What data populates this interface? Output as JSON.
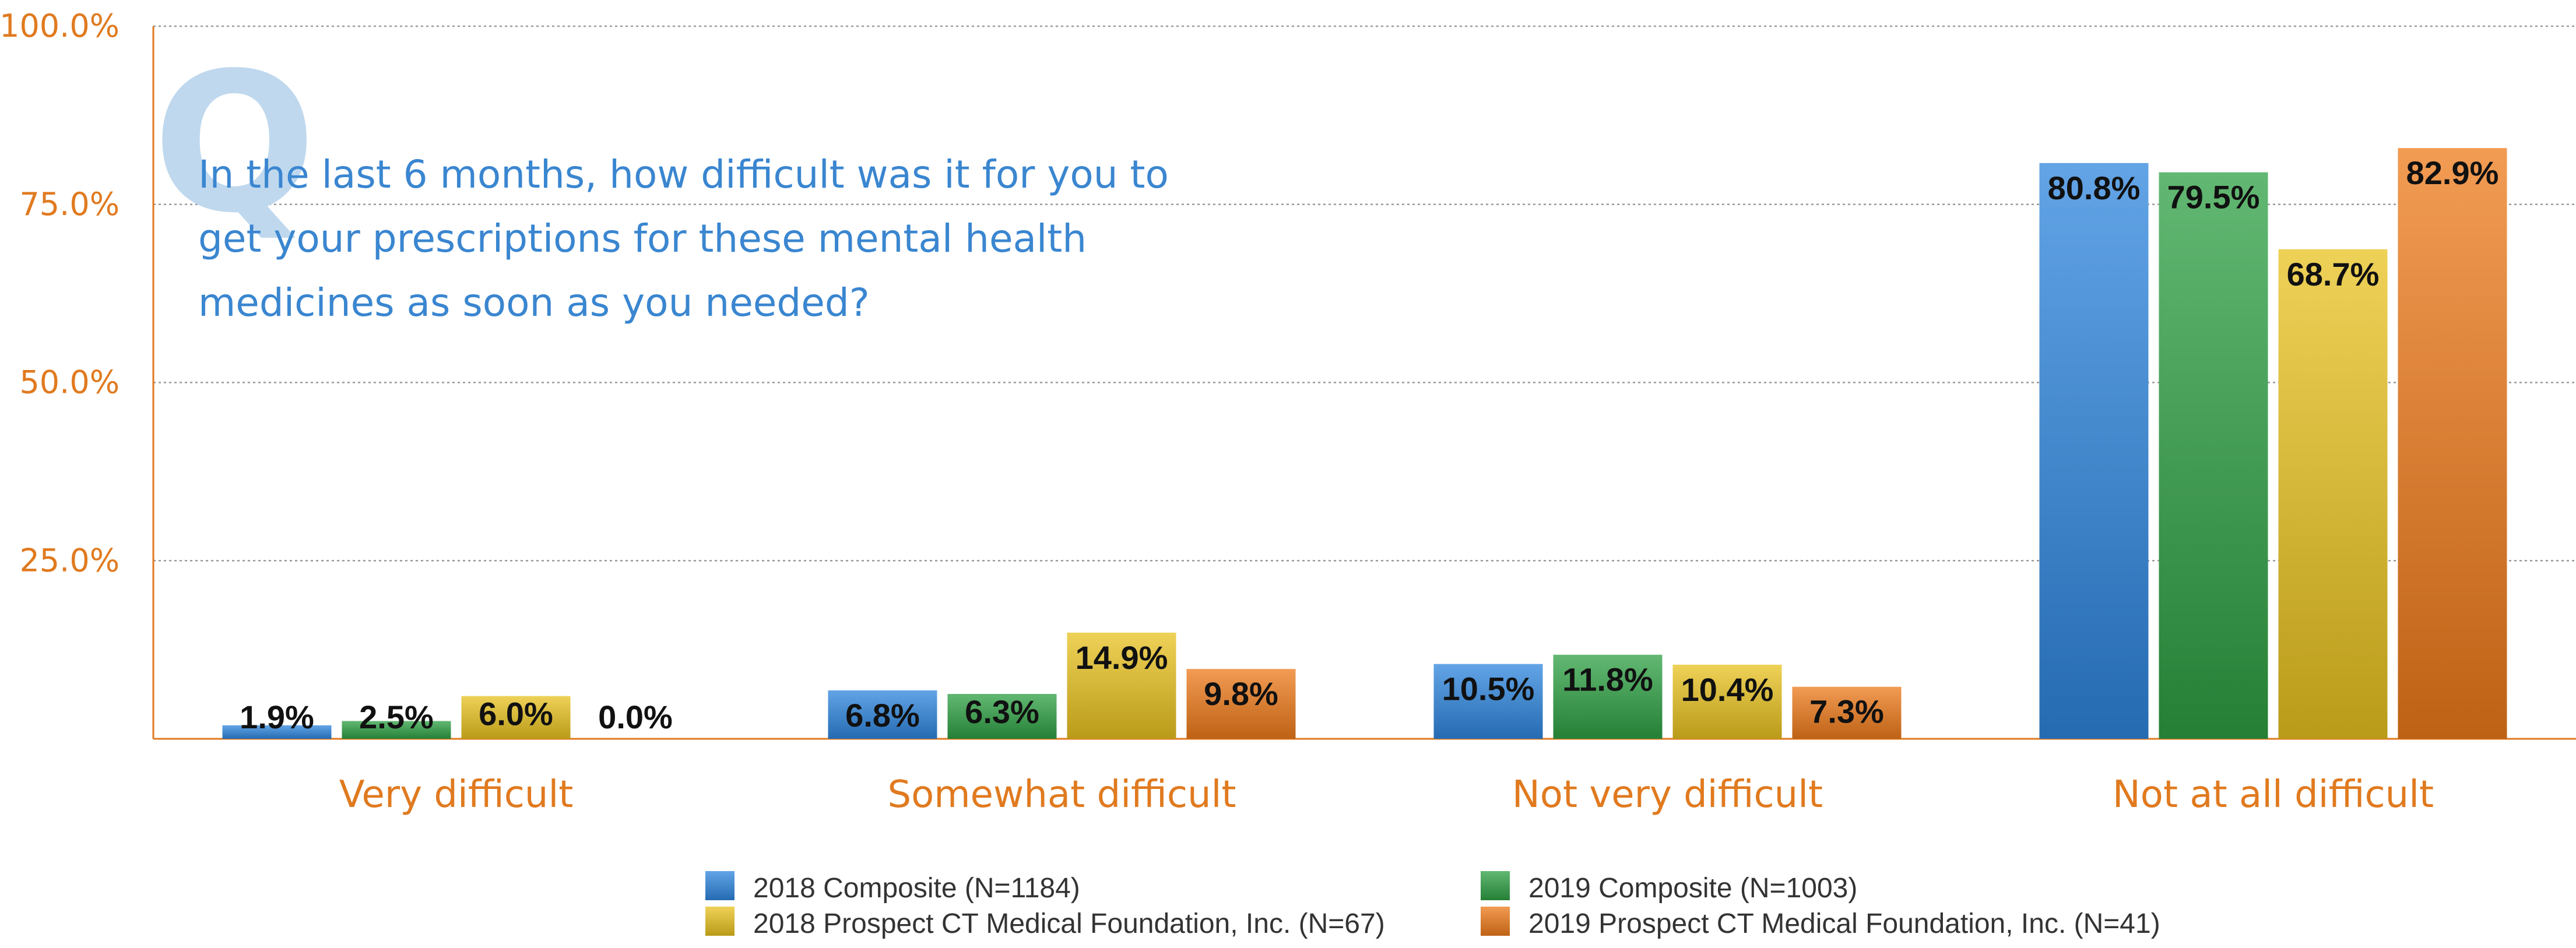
{
  "chart_data": {
    "type": "bar",
    "question_mark": "Q",
    "question": [
      "In the last 6 months, how difficult was it for you to",
      "get your prescriptions for these mental health",
      "medicines as soon as you needed?"
    ],
    "categories": [
      "Very difficult",
      "Somewhat difficult",
      "Not very difficult",
      "Not at all difficult"
    ],
    "series": [
      {
        "name": "2018 Composite (N=1184)",
        "values": [
          1.9,
          6.8,
          10.5,
          80.8
        ],
        "labels": [
          "1.9%",
          "6.8%",
          "10.5%",
          "80.8%"
        ],
        "color": "#2E86DE"
      },
      {
        "name": "2019 Composite (N=1003)",
        "values": [
          2.5,
          6.3,
          11.8,
          79.5
        ],
        "labels": [
          "2.5%",
          "6.3%",
          "11.8%",
          "79.5%"
        ],
        "color": "#2EA043"
      },
      {
        "name": "2018 Prospect CT Medical Foundation, Inc. (N=67)",
        "values": [
          6.0,
          14.9,
          10.4,
          68.7
        ],
        "labels": [
          "6.0%",
          "14.9%",
          "10.4%",
          "68.7%"
        ],
        "color": "#E8C21F"
      },
      {
        "name": "2019 Prospect CT Medical Foundation, Inc. (N=41)",
        "values": [
          0.0,
          9.8,
          7.3,
          82.9
        ],
        "labels": [
          "0.0%",
          "9.8%",
          "7.3%",
          "82.9%"
        ],
        "color": "#EE7A1A"
      }
    ],
    "yticks": [
      "25.0%",
      "50.0%",
      "75.0%",
      "100.0%"
    ],
    "ylim": [
      0,
      100
    ],
    "grid": true,
    "legend_position": "bottom"
  }
}
